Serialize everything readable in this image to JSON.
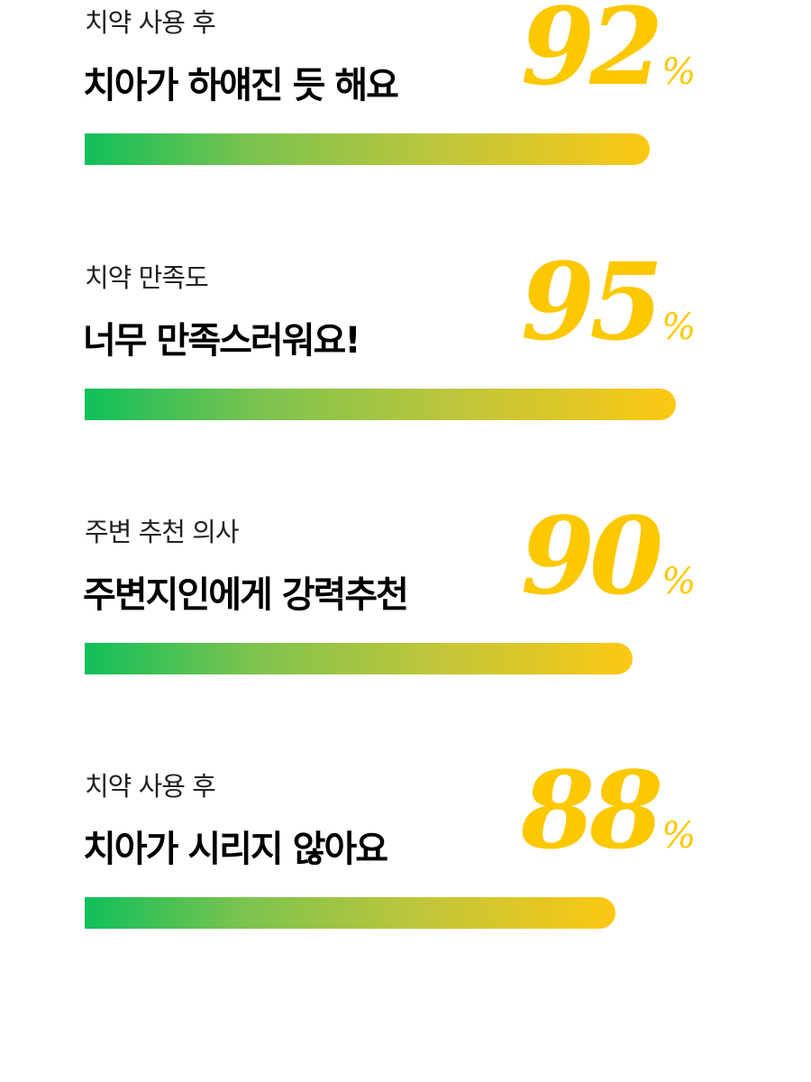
{
  "stats": [
    {
      "subtitle": "치약 사용 후",
      "title": "치아가 하얘진 듯 해요",
      "value": "92",
      "unit": "%",
      "percent": 92
    },
    {
      "subtitle": "치약 만족도",
      "title": "너무 만족스러워요!",
      "value": "95",
      "unit": "%",
      "percent": 95
    },
    {
      "subtitle": "주변 추천 의사",
      "title": "주변지인에게 강력추천",
      "value": "90",
      "unit": "%",
      "percent": 90
    },
    {
      "subtitle": "치약 사용 후",
      "title": "치아가 시리지 않아요",
      "value": "88",
      "unit": "%",
      "percent": 88
    }
  ],
  "colors": {
    "accent": "#fcc800",
    "bar_start": "#10bf5b",
    "bar_end": "#fcc813"
  }
}
